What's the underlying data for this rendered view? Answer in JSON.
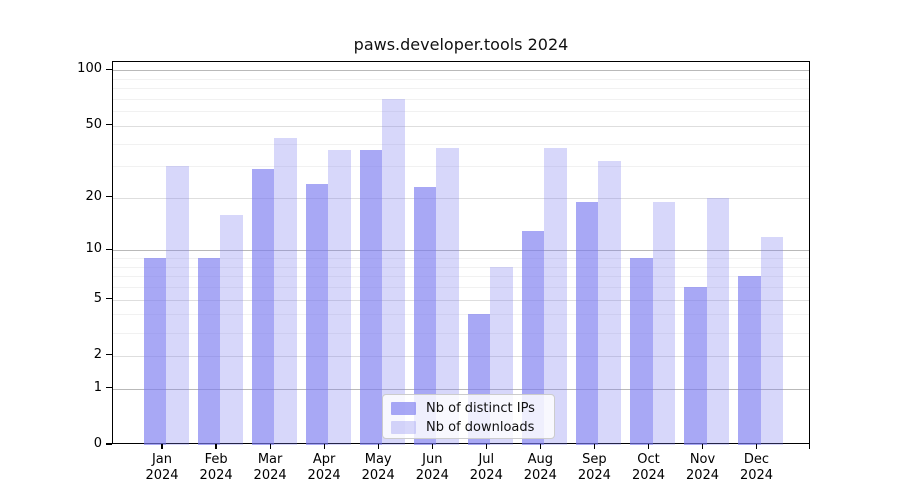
{
  "title": "paws.developer.tools 2024",
  "chart_data": {
    "type": "bar",
    "months": [
      "Jan",
      "Feb",
      "Mar",
      "Apr",
      "May",
      "Jun",
      "Jul",
      "Aug",
      "Sep",
      "Oct",
      "Nov",
      "Dec"
    ],
    "year": "2024",
    "categories": [
      "Jan 2024",
      "Feb 2024",
      "Mar 2024",
      "Apr 2024",
      "May 2024",
      "Jun 2024",
      "Jul 2024",
      "Aug 2024",
      "Sep 2024",
      "Oct 2024",
      "Nov 2024",
      "Dec 2024"
    ],
    "series": [
      {
        "name": "Nb of distinct IPs",
        "color": "rgba(123,123,240,0.66)",
        "values": [
          9,
          9,
          29,
          24,
          37,
          23,
          4,
          13,
          19,
          9,
          6,
          7
        ]
      },
      {
        "name": "Nb of downloads",
        "color": "rgba(123,123,240,0.30)",
        "values": [
          30,
          16,
          43,
          37,
          70,
          38,
          8,
          38,
          32,
          19,
          20,
          12
        ]
      }
    ],
    "yscale": "log10(value+1)",
    "y_tick_labels": [
      "0",
      "1",
      "2",
      "5",
      "10",
      "20",
      "50",
      "100"
    ],
    "y_major_ticks": [
      0,
      1,
      2,
      5,
      10,
      20,
      50,
      100
    ],
    "y_emphasized_gridlines": [
      1,
      10,
      100
    ],
    "y_minor_gridlines": [
      3,
      4,
      6,
      7,
      8,
      9,
      30,
      40,
      60,
      70,
      80,
      90
    ],
    "ylim": [
      0,
      111
    ],
    "xlabel": "",
    "ylabel": "",
    "grid": true,
    "legend_position": "lower center"
  }
}
